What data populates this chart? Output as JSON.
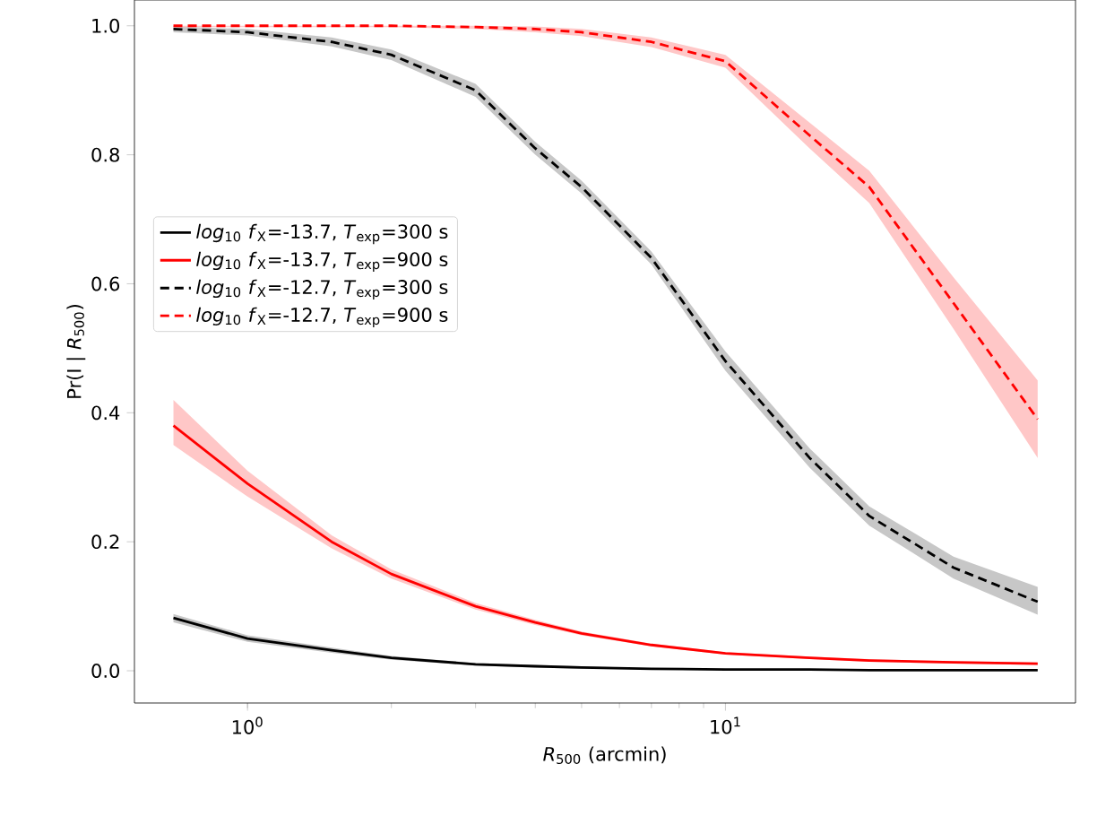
{
  "chart_data": {
    "type": "line",
    "xlabel": "*R*$_{500}$ (arcmin)",
    "ylabel": "Pr(I | *R*$_{500}$)",
    "log": "x",
    "grid": false,
    "legend": "center left",
    "xlim": [
      0.58,
      54
    ],
    "ylim": [
      -0.05,
      1.04
    ],
    "xticks": [
      {
        "value": 1,
        "label": "10$^{0}$"
      },
      {
        "value": 10,
        "label": "10$^{1}$"
      }
    ],
    "yticks": [
      {
        "value": 0,
        "label": "0.0"
      },
      {
        "value": 0.2,
        "label": "0.2"
      },
      {
        "value": 0.4,
        "label": "0.4"
      },
      {
        "value": 0.6,
        "label": "0.6"
      },
      {
        "value": 0.8,
        "label": "0.8"
      },
      {
        "value": 1,
        "label": "1.0"
      }
    ],
    "x": [
      0.7,
      1,
      1.5,
      2,
      3,
      4,
      5,
      7,
      10,
      15,
      20,
      30,
      45
    ],
    "series": [
      {
        "name": "*log*$_{10}$ *f*$_{X}$=-13.7, *T*$_{exp}$=300 s",
        "color": "#000000",
        "line_style": "solid",
        "values": [
          0.082,
          0.05,
          0.032,
          0.02,
          0.01,
          0.007,
          0.005,
          0.003,
          0.002,
          0.002,
          0.001,
          0.001,
          0.001
        ],
        "lower": [
          0.075,
          0.045,
          0.028,
          0.017,
          0.008,
          0.005,
          0.003,
          0.002,
          0.001,
          0.001,
          0.0,
          0.0,
          0.0
        ],
        "upper": [
          0.088,
          0.055,
          0.036,
          0.023,
          0.012,
          0.009,
          0.007,
          0.004,
          0.003,
          0.003,
          0.002,
          0.002,
          0.002
        ]
      },
      {
        "name": "*log*$_{10}$ *f*$_{X}$=-13.7, *T*$_{exp}$=900 s",
        "color": "#ff0000",
        "line_style": "solid",
        "values": [
          0.38,
          0.29,
          0.2,
          0.15,
          0.1,
          0.075,
          0.058,
          0.04,
          0.027,
          0.02,
          0.016,
          0.013,
          0.011
        ],
        "lower": [
          0.35,
          0.27,
          0.19,
          0.143,
          0.095,
          0.071,
          0.055,
          0.038,
          0.025,
          0.018,
          0.014,
          0.011,
          0.009
        ],
        "upper": [
          0.42,
          0.31,
          0.21,
          0.157,
          0.105,
          0.079,
          0.061,
          0.042,
          0.029,
          0.022,
          0.018,
          0.015,
          0.013
        ]
      },
      {
        "name": "*log*$_{10}$ *f*$_{X}$=-12.7, *T*$_{exp}$=300 s",
        "color": "#000000",
        "line_style": "dashed",
        "values": [
          0.995,
          0.99,
          0.975,
          0.955,
          0.9,
          0.81,
          0.75,
          0.64,
          0.48,
          0.33,
          0.24,
          0.16,
          0.107
        ],
        "lower": [
          0.99,
          0.985,
          0.968,
          0.947,
          0.89,
          0.8,
          0.74,
          0.63,
          0.465,
          0.315,
          0.225,
          0.143,
          0.087
        ],
        "upper": [
          0.999,
          0.995,
          0.982,
          0.963,
          0.91,
          0.82,
          0.76,
          0.65,
          0.495,
          0.345,
          0.255,
          0.177,
          0.13
        ]
      },
      {
        "name": "*log*$_{10}$ *f*$_{X}$=-12.7, *T*$_{exp}$=900 s",
        "color": "#ff0000",
        "line_style": "dashed",
        "values": [
          1.0,
          1.0,
          1.0,
          1.0,
          0.998,
          0.995,
          0.99,
          0.975,
          0.945,
          0.83,
          0.75,
          0.57,
          0.39
        ],
        "lower": [
          0.998,
          0.998,
          0.998,
          0.998,
          0.995,
          0.99,
          0.984,
          0.967,
          0.935,
          0.81,
          0.725,
          0.53,
          0.33
        ],
        "upper": [
          1.0,
          1.0,
          1.0,
          1.0,
          1.0,
          0.999,
          0.995,
          0.982,
          0.955,
          0.85,
          0.775,
          0.61,
          0.45
        ]
      }
    ]
  }
}
